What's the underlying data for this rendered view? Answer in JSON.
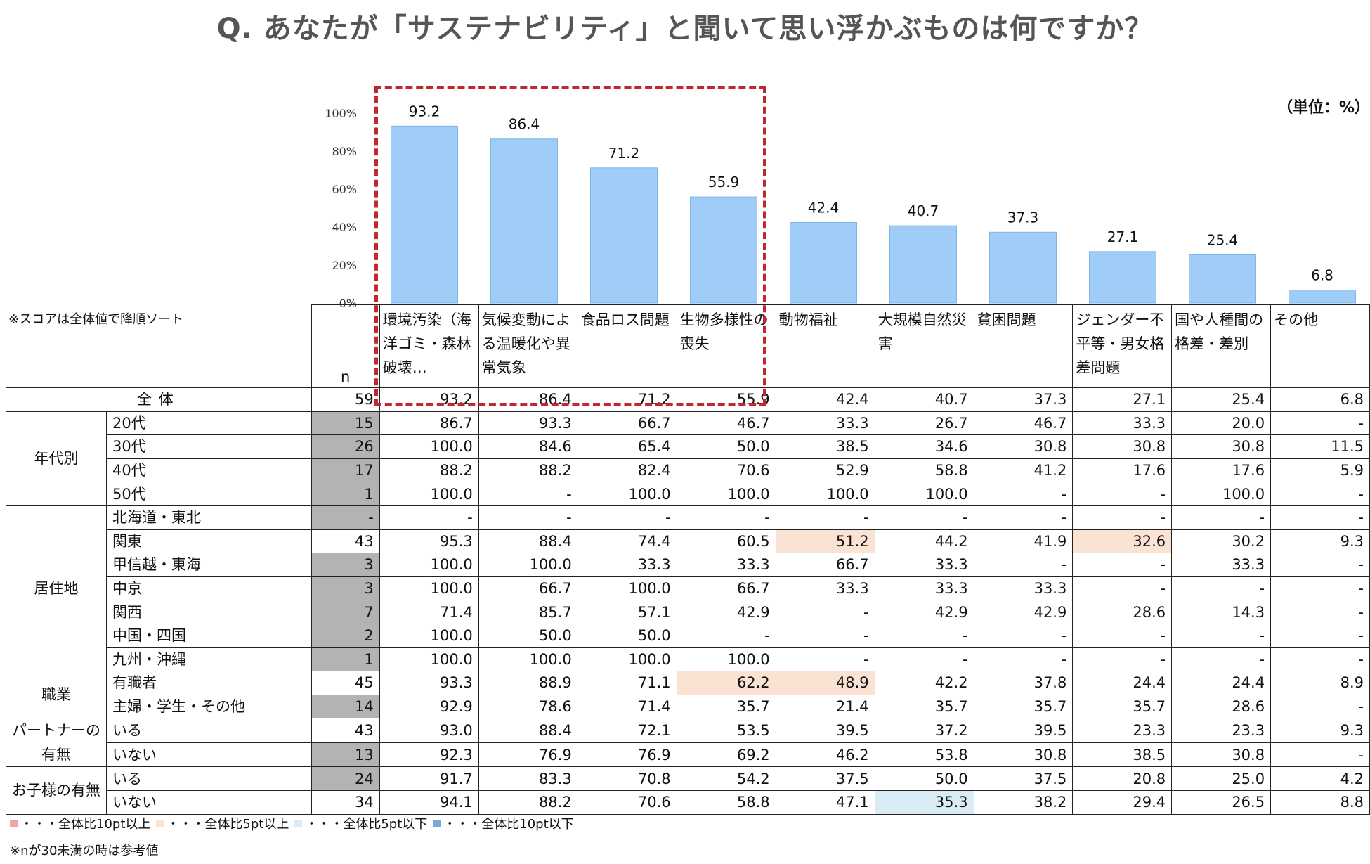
{
  "title": "Q. あなたが「サステナビリティ」と聞いて思い浮かぶものは何ですか？",
  "unit": "（単位：%）",
  "sort_note": "※スコアは全体値で降順ソート",
  "n_label": "n",
  "colors": {
    "bar": "#9fcdf8",
    "bar_edge": "#7fb6e6",
    "box": "#c0282d",
    "small_n": "#b3b3b3",
    "up5": "#fbe3d3",
    "dn5": "#d9ecf5",
    "up10": "#e9a7a7",
    "dn10": "#7da7db"
  },
  "chart_data": {
    "type": "bar",
    "categories": [
      "環境汚染（海洋ゴミ・森林破壊…",
      "気候変動による温暖化や異常気象",
      "食品ロス問題",
      "生物多様性の喪失",
      "動物福祉",
      "大規模自然災害",
      "貧困問題",
      "ジェンダー不平等・男女格差問題",
      "国や人種間の格差・差別",
      "その他"
    ],
    "values": [
      93.2,
      86.4,
      71.2,
      55.9,
      42.4,
      40.7,
      37.3,
      27.1,
      25.4,
      6.8
    ],
    "value_labels": [
      "93.2",
      "86.4",
      "71.2",
      "55.9",
      "42.4",
      "40.7",
      "37.3",
      "27.1",
      "25.4",
      "6.8"
    ],
    "ylim": [
      0,
      100
    ],
    "yticks": [
      "0%",
      "20%",
      "40%",
      "60%",
      "80%",
      "100%"
    ],
    "grid": false,
    "highlighted_categories": [
      0,
      1,
      2,
      3
    ]
  },
  "table": {
    "headers": [
      "環境汚染（海洋ゴミ・森林破壊…",
      "気候変動による温暖化や異常気象",
      "食品ロス問題",
      "生物多様性の喪失",
      "動物福祉",
      "大規模自然災害",
      "貧困問題",
      "ジェンダー不平等・男女格差問題",
      "国や人種間の格差・差別",
      "その他"
    ],
    "total": {
      "label": "全体",
      "n": "59",
      "values": [
        "93.2",
        "86.4",
        "71.2",
        "55.9",
        "42.4",
        "40.7",
        "37.3",
        "27.1",
        "25.4",
        "6.8"
      ]
    },
    "groups": [
      {
        "name": "年代別",
        "rows": [
          {
            "label": "20代",
            "n": "15",
            "small": true,
            "values": [
              "86.7",
              "93.3",
              "66.7",
              "46.7",
              "33.3",
              "26.7",
              "46.7",
              "33.3",
              "20.0",
              "-"
            ],
            "hl": {}
          },
          {
            "label": "30代",
            "n": "26",
            "small": true,
            "values": [
              "100.0",
              "84.6",
              "65.4",
              "50.0",
              "38.5",
              "34.6",
              "30.8",
              "30.8",
              "30.8",
              "11.5"
            ],
            "hl": {}
          },
          {
            "label": "40代",
            "n": "17",
            "small": true,
            "values": [
              "88.2",
              "88.2",
              "82.4",
              "70.6",
              "52.9",
              "58.8",
              "41.2",
              "17.6",
              "17.6",
              "5.9"
            ],
            "hl": {}
          },
          {
            "label": "50代",
            "n": "1",
            "small": true,
            "values": [
              "100.0",
              "-",
              "100.0",
              "100.0",
              "100.0",
              "100.0",
              "-",
              "-",
              "100.0",
              "-"
            ],
            "hl": {}
          }
        ]
      },
      {
        "name": "居住地",
        "rows": [
          {
            "label": "北海道・東北",
            "n": "-",
            "small": true,
            "values": [
              "-",
              "-",
              "-",
              "-",
              "-",
              "-",
              "-",
              "-",
              "-",
              "-"
            ],
            "hl": {}
          },
          {
            "label": "関東",
            "n": "43",
            "small": false,
            "values": [
              "95.3",
              "88.4",
              "74.4",
              "60.5",
              "51.2",
              "44.2",
              "41.9",
              "32.6",
              "30.2",
              "9.3"
            ],
            "hl": {
              "4": "up5",
              "7": "up5"
            }
          },
          {
            "label": "甲信越・東海",
            "n": "3",
            "small": true,
            "values": [
              "100.0",
              "100.0",
              "33.3",
              "33.3",
              "66.7",
              "33.3",
              "-",
              "-",
              "33.3",
              "-"
            ],
            "hl": {}
          },
          {
            "label": "中京",
            "n": "3",
            "small": true,
            "values": [
              "100.0",
              "66.7",
              "100.0",
              "66.7",
              "33.3",
              "33.3",
              "33.3",
              "-",
              "-",
              "-"
            ],
            "hl": {}
          },
          {
            "label": "関西",
            "n": "7",
            "small": true,
            "values": [
              "71.4",
              "85.7",
              "57.1",
              "42.9",
              "-",
              "42.9",
              "42.9",
              "28.6",
              "14.3",
              "-"
            ],
            "hl": {}
          },
          {
            "label": "中国・四国",
            "n": "2",
            "small": true,
            "values": [
              "100.0",
              "50.0",
              "50.0",
              "-",
              "-",
              "-",
              "-",
              "-",
              "-",
              "-"
            ],
            "hl": {}
          },
          {
            "label": "九州・沖縄",
            "n": "1",
            "small": true,
            "values": [
              "100.0",
              "100.0",
              "100.0",
              "100.0",
              "-",
              "-",
              "-",
              "-",
              "-",
              "-"
            ],
            "hl": {}
          }
        ]
      },
      {
        "name": "職業",
        "rows": [
          {
            "label": "有職者",
            "n": "45",
            "small": false,
            "values": [
              "93.3",
              "88.9",
              "71.1",
              "62.2",
              "48.9",
              "42.2",
              "37.8",
              "24.4",
              "24.4",
              "8.9"
            ],
            "hl": {
              "3": "up5",
              "4": "up5"
            }
          },
          {
            "label": "主婦・学生・その他",
            "n": "14",
            "small": true,
            "values": [
              "92.9",
              "78.6",
              "71.4",
              "35.7",
              "21.4",
              "35.7",
              "35.7",
              "35.7",
              "28.6",
              "-"
            ],
            "hl": {}
          }
        ]
      },
      {
        "name": "パートナーの有無",
        "rows": [
          {
            "label": "いる",
            "n": "43",
            "small": false,
            "values": [
              "93.0",
              "88.4",
              "72.1",
              "53.5",
              "39.5",
              "37.2",
              "39.5",
              "23.3",
              "23.3",
              "9.3"
            ],
            "hl": {}
          },
          {
            "label": "いない",
            "n": "13",
            "small": true,
            "values": [
              "92.3",
              "76.9",
              "76.9",
              "69.2",
              "46.2",
              "53.8",
              "30.8",
              "38.5",
              "30.8",
              "-"
            ],
            "hl": {}
          }
        ]
      },
      {
        "name": "お子様の有無",
        "rows": [
          {
            "label": "いる",
            "n": "24",
            "small": true,
            "values": [
              "91.7",
              "83.3",
              "70.8",
              "54.2",
              "37.5",
              "50.0",
              "37.5",
              "20.8",
              "25.0",
              "4.2"
            ],
            "hl": {}
          },
          {
            "label": "いない",
            "n": "34",
            "small": false,
            "values": [
              "94.1",
              "88.2",
              "70.6",
              "58.8",
              "47.1",
              "35.3",
              "38.2",
              "29.4",
              "26.5",
              "8.8"
            ],
            "hl": {
              "5": "dn5"
            }
          }
        ]
      }
    ]
  },
  "legend": [
    {
      "key": "up10",
      "text": "・・・全体比10pt以上"
    },
    {
      "key": "up5",
      "text": "・・・全体比5pt以上"
    },
    {
      "key": "dn5",
      "text": "・・・全体比5pt以下"
    },
    {
      "key": "dn10",
      "text": "・・・全体比10pt以下"
    }
  ],
  "footnote": "※nが30未満の時は参考値"
}
